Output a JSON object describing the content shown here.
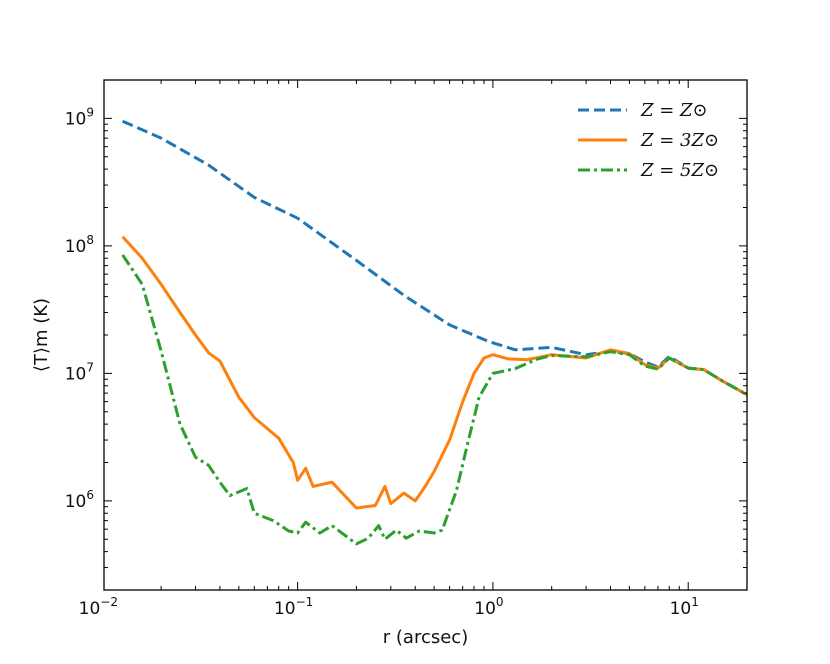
{
  "chart_data": {
    "type": "line",
    "title": "",
    "xlabel": "r (arcsec)",
    "ylabel": "⟨T⟩m (K)",
    "xscale": "log",
    "yscale": "log",
    "xlim": [
      0.0102,
      20
    ],
    "ylim": [
      200000,
      2000000000
    ],
    "grid": false,
    "legend_position": "top-right",
    "x_ticks": [
      {
        "value": 0.01,
        "base": "10",
        "exp": "−2"
      },
      {
        "value": 0.1,
        "base": "10",
        "exp": "−1"
      },
      {
        "value": 1,
        "base": "10",
        "exp": "0"
      },
      {
        "value": 10,
        "base": "10",
        "exp": "1"
      }
    ],
    "y_ticks": [
      {
        "value": 1000000,
        "base": "10",
        "exp": "6"
      },
      {
        "value": 10000000,
        "base": "10",
        "exp": "7"
      },
      {
        "value": 100000000,
        "base": "10",
        "exp": "8"
      },
      {
        "value": 1000000000,
        "base": "10",
        "exp": "9"
      }
    ],
    "series": [
      {
        "name": "Z = Z⊙",
        "color": "#1f77b4",
        "style": "dashed",
        "points": [
          [
            0.0127,
            950000000
          ],
          [
            0.02,
            700000000
          ],
          [
            0.035,
            430000000
          ],
          [
            0.06,
            240000000
          ],
          [
            0.1,
            165000000
          ],
          [
            0.2,
            77000000
          ],
          [
            0.35,
            41000000
          ],
          [
            0.6,
            24000000
          ],
          [
            0.95,
            17800000
          ],
          [
            1.3,
            15300000
          ],
          [
            2.0,
            16000000
          ],
          [
            3.0,
            14000000
          ],
          [
            4.0,
            14900000
          ],
          [
            5.0,
            14300000
          ],
          [
            6.0,
            12300000
          ],
          [
            7.0,
            11200000
          ],
          [
            8.0,
            13600000
          ],
          [
            10,
            11000000
          ],
          [
            12,
            10700000
          ],
          [
            15,
            8700000
          ],
          [
            20,
            6800000
          ]
        ]
      },
      {
        "name": "Z = 3Z⊙",
        "color": "#ff7f0e",
        "style": "solid",
        "points": [
          [
            0.0127,
            118000000
          ],
          [
            0.016,
            80000000
          ],
          [
            0.02,
            50000000
          ],
          [
            0.025,
            30000000
          ],
          [
            0.03,
            20000000
          ],
          [
            0.035,
            14500000
          ],
          [
            0.04,
            12500000
          ],
          [
            0.05,
            6500000
          ],
          [
            0.06,
            4500000
          ],
          [
            0.08,
            3100000
          ],
          [
            0.095,
            2000000
          ],
          [
            0.1,
            1450000
          ],
          [
            0.11,
            1800000
          ],
          [
            0.12,
            1300000
          ],
          [
            0.15,
            1400000
          ],
          [
            0.2,
            880000
          ],
          [
            0.25,
            920000
          ],
          [
            0.28,
            1300000
          ],
          [
            0.3,
            950000
          ],
          [
            0.35,
            1150000
          ],
          [
            0.4,
            1000000
          ],
          [
            0.45,
            1300000
          ],
          [
            0.5,
            1700000
          ],
          [
            0.6,
            3000000
          ],
          [
            0.7,
            6000000
          ],
          [
            0.8,
            10000000
          ],
          [
            0.9,
            13200000
          ],
          [
            1.0,
            14000000
          ],
          [
            1.2,
            13000000
          ],
          [
            1.5,
            12800000
          ],
          [
            2.0,
            14000000
          ],
          [
            3.0,
            13200000
          ],
          [
            4.0,
            15300000
          ],
          [
            5.0,
            14300000
          ],
          [
            6.0,
            11700000
          ],
          [
            7.0,
            11000000
          ],
          [
            8.0,
            13200000
          ],
          [
            10,
            11000000
          ],
          [
            12,
            10700000
          ],
          [
            15,
            8700000
          ],
          [
            20,
            6800000
          ]
        ]
      },
      {
        "name": "Z = 5Z⊙",
        "color": "#2ca02c",
        "style": "dashdot",
        "points": [
          [
            0.0127,
            85000000
          ],
          [
            0.016,
            50000000
          ],
          [
            0.02,
            15000000
          ],
          [
            0.025,
            4000000
          ],
          [
            0.03,
            2200000
          ],
          [
            0.035,
            1900000
          ],
          [
            0.04,
            1400000
          ],
          [
            0.045,
            1100000
          ],
          [
            0.055,
            1250000
          ],
          [
            0.06,
            800000
          ],
          [
            0.075,
            700000
          ],
          [
            0.09,
            580000
          ],
          [
            0.1,
            560000
          ],
          [
            0.11,
            680000
          ],
          [
            0.13,
            560000
          ],
          [
            0.15,
            640000
          ],
          [
            0.2,
            460000
          ],
          [
            0.23,
            510000
          ],
          [
            0.26,
            640000
          ],
          [
            0.28,
            500000
          ],
          [
            0.32,
            590000
          ],
          [
            0.36,
            510000
          ],
          [
            0.42,
            580000
          ],
          [
            0.5,
            560000
          ],
          [
            0.55,
            590000
          ],
          [
            0.65,
            1200000
          ],
          [
            0.75,
            3000000
          ],
          [
            0.85,
            6500000
          ],
          [
            1.0,
            10000000
          ],
          [
            1.3,
            10900000
          ],
          [
            1.7,
            13000000
          ],
          [
            2.0,
            13800000
          ],
          [
            3.0,
            13500000
          ],
          [
            4.0,
            14800000
          ],
          [
            5.0,
            14000000
          ],
          [
            6.0,
            11400000
          ],
          [
            7.0,
            10800000
          ],
          [
            8.0,
            13200000
          ],
          [
            10,
            11000000
          ],
          [
            12,
            10700000
          ],
          [
            15,
            8700000
          ],
          [
            20,
            6800000
          ]
        ]
      }
    ]
  }
}
